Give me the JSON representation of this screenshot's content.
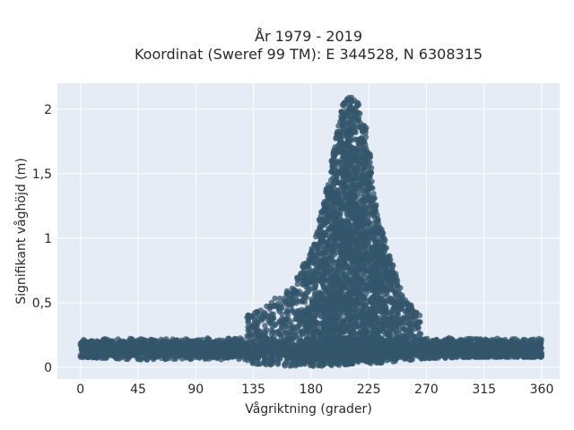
{
  "chart_data": {
    "type": "scatter",
    "title_line1": "År 1979 - 2019",
    "title_line2": "Koordinat (Sweref 99 TM): E 344528, N 6308315",
    "xlabel": "Vågriktning (grader)",
    "ylabel": "Signifikant våghöjd (m)",
    "xlim": [
      -18,
      374
    ],
    "ylim": [
      -0.09,
      2.2
    ],
    "x_ticks": [
      {
        "value": 0,
        "label": "0"
      },
      {
        "value": 45,
        "label": "45"
      },
      {
        "value": 90,
        "label": "90"
      },
      {
        "value": 135,
        "label": "135"
      },
      {
        "value": 180,
        "label": "180"
      },
      {
        "value": 225,
        "label": "225"
      },
      {
        "value": 270,
        "label": "270"
      },
      {
        "value": 315,
        "label": "315"
      },
      {
        "value": 360,
        "label": "360"
      }
    ],
    "y_ticks": [
      {
        "value": 0,
        "label": "0"
      },
      {
        "value": 0.5,
        "label": "0,5"
      },
      {
        "value": 1,
        "label": "1"
      },
      {
        "value": 1.5,
        "label": "1,5"
      },
      {
        "value": 2,
        "label": "2"
      }
    ],
    "grid": true,
    "marker_color": "#34566b",
    "plot_bg": "#e5ecf6",
    "envelope": {
      "x": [
        0,
        20,
        45,
        70,
        90,
        110,
        130,
        145,
        160,
        170,
        180,
        190,
        200,
        205,
        210,
        215,
        220,
        225,
        230,
        240,
        250,
        260,
        270,
        280,
        300,
        330,
        360
      ],
      "ymax": [
        0.24,
        0.24,
        0.25,
        0.27,
        0.3,
        0.33,
        0.4,
        0.48,
        0.6,
        0.72,
        0.92,
        1.28,
        1.82,
        2.05,
        2.1,
        2.08,
        2.02,
        1.75,
        1.3,
        0.9,
        0.62,
        0.45,
        0.36,
        0.3,
        0.26,
        0.24,
        0.22
      ],
      "ymin": [
        0.08,
        0.07,
        0.06,
        0.05,
        0.04,
        0.03,
        0.02,
        0.02,
        0.01,
        0.01,
        0.01,
        0.01,
        0.01,
        0.02,
        0.02,
        0.02,
        0.02,
        0.03,
        0.03,
        0.04,
        0.05,
        0.06,
        0.07,
        0.07,
        0.08,
        0.08,
        0.08
      ]
    }
  }
}
